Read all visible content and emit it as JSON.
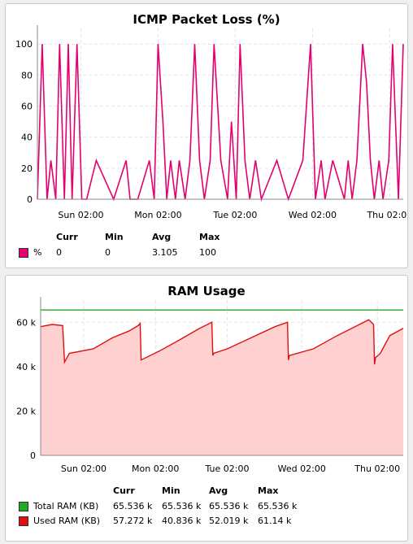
{
  "chart_data": [
    {
      "type": "line",
      "title": "ICMP Packet Loss (%)",
      "ylim": [
        0,
        110
      ],
      "yticks": [
        0,
        20,
        40,
        60,
        80,
        100
      ],
      "xticks": [
        "Sun 02:00",
        "Mon 02:00",
        "Tue 02:00",
        "Wed 02:00",
        "Thu 02:00"
      ],
      "grid": true,
      "series": [
        {
          "name": "%",
          "color": "#e3006f",
          "x": [
            0,
            0.5,
            1,
            1.4,
            1.9,
            2.3,
            2.8,
            3.2,
            3.6,
            4.1,
            4.6,
            5.1,
            6.1,
            7.9,
            9.2,
            9.6,
            10.4,
            11.6,
            12.1,
            12.5,
            13.0,
            13.4,
            13.8,
            14.3,
            14.7,
            15.3,
            15.8,
            16.3,
            16.8,
            17.3,
            17.9,
            18.3,
            19.0,
            19.7,
            20.1,
            20.6,
            21.0,
            21.5,
            22.0,
            22.6,
            23.2,
            24.8,
            26.0,
            27.5,
            28.3,
            28.8,
            29.4,
            29.8,
            30.6,
            31.8,
            32.2,
            32.6,
            33.1,
            33.7,
            34.1,
            34.5,
            34.9,
            35.4,
            35.8,
            36.4,
            36.8,
            37.4,
            37.9
          ],
          "values": [
            0,
            100,
            0,
            25,
            0,
            100,
            0,
            100,
            0,
            100,
            0,
            0,
            25,
            0,
            25,
            0,
            0,
            25,
            0,
            100,
            50,
            0,
            25,
            0,
            25,
            0,
            25,
            100,
            25,
            0,
            25,
            100,
            25,
            0,
            50,
            0,
            100,
            25,
            0,
            25,
            0,
            25,
            0,
            25,
            100,
            0,
            25,
            0,
            25,
            0,
            25,
            0,
            25,
            100,
            75,
            25,
            0,
            25,
            0,
            25,
            100,
            0,
            100
          ],
          "curr": "0",
          "min": "0",
          "avg": "3.105",
          "max": "100"
        }
      ],
      "table": {
        "headers": [
          "Curr",
          "Min",
          "Avg",
          "Max"
        ],
        "rows": [
          {
            "label": "%",
            "color": "#e3006f",
            "values": [
              "0",
              "0",
              "3.105",
              "100"
            ]
          }
        ]
      }
    },
    {
      "type": "area",
      "title": "RAM Usage",
      "ylim": [
        0,
        70000
      ],
      "yticks": [
        0,
        20000,
        40000,
        60000
      ],
      "ytick_labels": [
        "0",
        "20 k",
        "40 k",
        "60 k"
      ],
      "xticks": [
        "Sun 02:00",
        "Mon 02:00",
        "Tue 02:00",
        "Wed 02:00",
        "Thu 02:00"
      ],
      "grid": true,
      "series": [
        {
          "name": "Total RAM (KB)",
          "color": "#22aa22",
          "x": [
            0,
            37.9
          ],
          "values": [
            65536,
            65536
          ]
        },
        {
          "name": "Used RAM (KB)",
          "color": "#dd1111",
          "fill": "#ffd0d0",
          "x": [
            0,
            1.2,
            2.3,
            2.5,
            3.0,
            5.5,
            7.5,
            9.2,
            10.2,
            10.4,
            10.5,
            12.4,
            14.5,
            16.5,
            17.9,
            18.0,
            18.1,
            19.5,
            22.0,
            24.5,
            25.8,
            25.9,
            26.0,
            28.5,
            31.0,
            34.3,
            34.8,
            34.9,
            35.0,
            35.5,
            36.5,
            37.9
          ],
          "values": [
            58000,
            59000,
            58500,
            42000,
            46000,
            48000,
            53000,
            56000,
            58500,
            59500,
            43000,
            47000,
            52000,
            57000,
            60000,
            45000,
            46000,
            48000,
            53000,
            58000,
            60000,
            43000,
            45000,
            48000,
            54000,
            61140,
            59000,
            41000,
            44000,
            46000,
            54000,
            57272
          ]
        }
      ],
      "table": {
        "headers": [
          "Curr",
          "Min",
          "Avg",
          "Max"
        ],
        "rows": [
          {
            "label": "Total RAM (KB)",
            "color": "#22aa22",
            "values": [
              "65.536 k",
              "65.536 k",
              "65.536 k",
              "65.536 k"
            ]
          },
          {
            "label": "Used RAM (KB)",
            "color": "#dd1111",
            "values": [
              "57.272 k",
              "40.836 k",
              "52.019 k",
              "61.14 k"
            ]
          }
        ]
      }
    }
  ]
}
